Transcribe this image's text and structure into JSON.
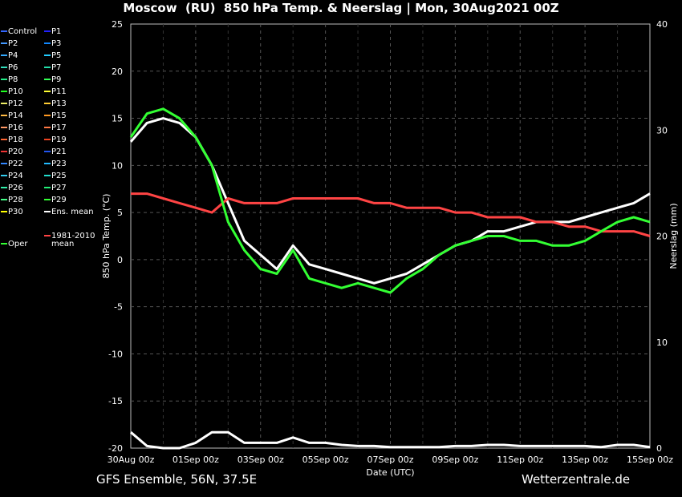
{
  "title": "Moscow  (RU)  850 hPa Temp. & Neerslag | Mon, 30Aug2021 00Z",
  "footer": {
    "left": "GFS Ensemble, 56N, 37.5E",
    "right": "Wetterzentrale.de"
  },
  "colors": {
    "background": "#000000",
    "grid": "#555555",
    "ens_mean": "#ffffff",
    "climate_mean": "#ff4444",
    "oper": "#33ff33"
  },
  "legend": [
    {
      "label": "Control",
      "color": "#3366ff"
    },
    {
      "label": "P1",
      "color": "#2222ff"
    },
    {
      "label": "P2",
      "color": "#4499ff"
    },
    {
      "label": "P3",
      "color": "#1188ff"
    },
    {
      "label": "P4",
      "color": "#33aaff"
    },
    {
      "label": "P5",
      "color": "#22ccff"
    },
    {
      "label": "P6",
      "color": "#33ddbb"
    },
    {
      "label": "P7",
      "color": "#22ddaa"
    },
    {
      "label": "P8",
      "color": "#22ee88"
    },
    {
      "label": "P9",
      "color": "#33ff55"
    },
    {
      "label": "P10",
      "color": "#22ff22"
    },
    {
      "label": "P11",
      "color": "#ffff33"
    },
    {
      "label": "P12",
      "color": "#eeee66"
    },
    {
      "label": "P13",
      "color": "#ffcc33"
    },
    {
      "label": "P14",
      "color": "#ffbb44"
    },
    {
      "label": "P15",
      "color": "#ff9922"
    },
    {
      "label": "P16",
      "color": "#ff9966"
    },
    {
      "label": "P17",
      "color": "#ff7744"
    },
    {
      "label": "P18",
      "color": "#ff6633"
    },
    {
      "label": "P19",
      "color": "#ee4422"
    },
    {
      "label": "P20",
      "color": "#ee3333"
    },
    {
      "label": "P21",
      "color": "#2255ee"
    },
    {
      "label": "P22",
      "color": "#3388ff"
    },
    {
      "label": "P23",
      "color": "#22bbff"
    },
    {
      "label": "P24",
      "color": "#33ccee"
    },
    {
      "label": "P25",
      "color": "#22ddcc"
    },
    {
      "label": "P26",
      "color": "#33eeaa"
    },
    {
      "label": "P27",
      "color": "#22ee77"
    },
    {
      "label": "P28",
      "color": "#44ff88"
    },
    {
      "label": "P29",
      "color": "#33ff33"
    },
    {
      "label": "P30",
      "color": "#ffff00"
    },
    {
      "label": "Ens. mean",
      "color": "#ffffff"
    },
    {
      "label": "1981-2010 mean",
      "color": "#ff4444"
    },
    {
      "label": "Oper",
      "color": "#33ff33"
    }
  ],
  "chart_data": {
    "type": "line",
    "xlabel": "Date (UTC)",
    "ylabel": "850 hPa Temp. (°C)",
    "y2label": "Neerslag (mm)",
    "x_ticks": [
      "30Aug 00z",
      "01Sep 00z",
      "03Sep 00z",
      "05Sep 00z",
      "07Sep 00z",
      "09Sep 00z",
      "11Sep 00z",
      "13Sep 00z",
      "15Sep 00z"
    ],
    "x_range_days": [
      0,
      16
    ],
    "ylim": [
      -20,
      25
    ],
    "yticks": [
      25,
      20,
      15,
      10,
      5,
      0,
      -5,
      -10,
      -15,
      -20
    ],
    "y2lim": [
      0,
      40
    ],
    "y2ticks": [
      40,
      30,
      20,
      10,
      0
    ],
    "grid": true,
    "x_days": [
      0,
      0.5,
      1,
      1.5,
      2,
      2.5,
      3,
      3.5,
      4,
      4.5,
      5,
      5.5,
      6,
      6.5,
      7,
      7.5,
      8,
      8.5,
      9,
      9.5,
      10,
      10.5,
      11,
      11.5,
      12,
      12.5,
      13,
      13.5,
      14,
      14.5,
      15,
      15.5,
      16
    ],
    "series": [
      {
        "name": "Ens. mean",
        "color": "#ffffff",
        "width": 3,
        "values": [
          12.5,
          14.5,
          15,
          14.5,
          13,
          10,
          6,
          2,
          0.5,
          -1,
          1.5,
          -0.5,
          -1,
          -1.5,
          -2,
          -2.5,
          -2,
          -1.5,
          -0.5,
          0.5,
          1.5,
          2,
          3,
          3,
          3.5,
          4,
          4,
          4,
          4.5,
          5,
          5.5,
          6,
          7
        ]
      },
      {
        "name": "1981-2010 mean",
        "color": "#ff4444",
        "width": 3,
        "values": [
          7,
          7,
          6.5,
          6,
          5.5,
          5,
          6.5,
          6,
          6,
          6,
          6.5,
          6.5,
          6.5,
          6.5,
          6.5,
          6,
          6,
          5.5,
          5.5,
          5.5,
          5,
          5,
          4.5,
          4.5,
          4.5,
          4,
          4,
          3.5,
          3.5,
          3,
          3,
          3,
          2.5
        ]
      },
      {
        "name": "Oper",
        "color": "#33ff33",
        "width": 3,
        "values": [
          13,
          15.5,
          16,
          15,
          13,
          10,
          4,
          1,
          -1,
          -1.5,
          1,
          -2,
          -2.5,
          -3,
          -2.5,
          -3,
          -3.5,
          -2,
          -1,
          0.5,
          1.5,
          2,
          2.5,
          2.5,
          2,
          2,
          1.5,
          1.5,
          2,
          3,
          4,
          4.5,
          4
        ]
      }
    ],
    "precip_series": [
      {
        "name": "Ens. mean",
        "values": [
          1.5,
          0.2,
          0,
          0,
          0.5,
          1.5,
          1.5,
          0.5,
          0.5,
          0.5,
          1,
          0.5,
          0.5,
          0.3,
          0.2,
          0.2,
          0.1,
          0.1,
          0.1,
          0.1,
          0.2,
          0.2,
          0.3,
          0.3,
          0.2,
          0.2,
          0.2,
          0.2,
          0.2,
          0.1,
          0.3,
          0.3,
          0.1
        ]
      }
    ]
  }
}
